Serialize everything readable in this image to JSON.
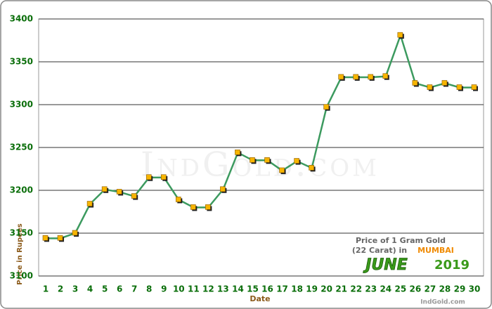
{
  "chart_data": {
    "type": "line",
    "x_label": "Date",
    "y_label": "Price in Rupees",
    "categories": [
      "1",
      "2",
      "3",
      "4",
      "5",
      "6",
      "7",
      "8",
      "9",
      "10",
      "11",
      "12",
      "13",
      "14",
      "15",
      "16",
      "17",
      "18",
      "19",
      "20",
      "21",
      "22",
      "23",
      "24",
      "25",
      "26",
      "27",
      "28",
      "29",
      "30"
    ],
    "series": [
      {
        "color": "#3c9a5f",
        "marker_color": "#f7b500",
        "values": [
          3144,
          3144,
          3150,
          3184,
          3201,
          3198,
          3193,
          3215,
          3215,
          3189,
          3180,
          3180,
          3201,
          3244,
          3235,
          3235,
          3223,
          3234,
          3226,
          3297,
          3332,
          3332,
          3332,
          3333,
          3381,
          3325,
          3320,
          3325,
          3320,
          3320
        ]
      }
    ],
    "ylim": [
      3100,
      3400
    ],
    "yticks": [
      3100,
      3150,
      3200,
      3250,
      3300,
      3350,
      3400
    ],
    "grid": true,
    "watermark": "IndGold.com",
    "annotation": {
      "line1": "Price of 1 Gram Gold",
      "line2": "(22 Carat) in",
      "city": "MUMBAI",
      "month": "JUNE",
      "year": "2019"
    },
    "footer": "IndGold.com"
  }
}
